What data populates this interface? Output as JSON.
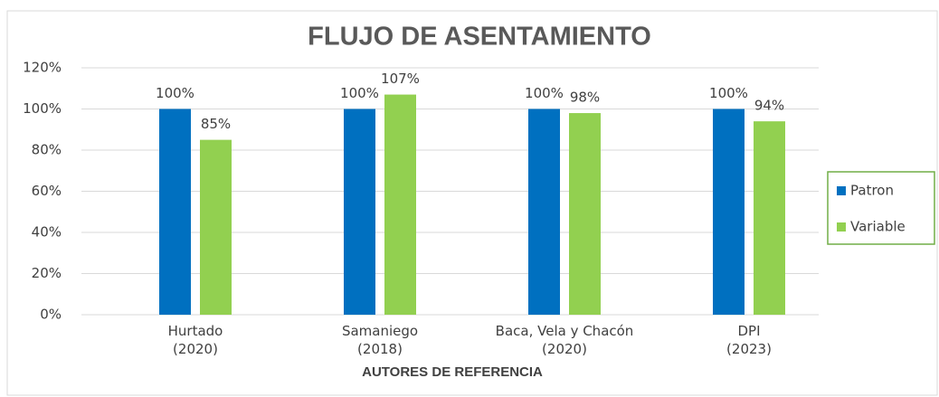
{
  "chart_data": {
    "type": "bar",
    "title": "FLUJO DE ASENTAMIENTO",
    "x_label": "AUTORES DE REFERENCIA",
    "categories": [
      "Hurtado\n(2020)",
      "Samaniego\n(2018)",
      "Baca, Vela y Chacón\n(2020)",
      "DPI\n(2023)"
    ],
    "series": [
      {
        "name": "Patron",
        "color": "#0070c0",
        "values": [
          100,
          100,
          100,
          100
        ],
        "value_labels": [
          "100%",
          "100%",
          "100%",
          "100%"
        ]
      },
      {
        "name": "Variable",
        "color": "#92d050",
        "values": [
          85,
          107,
          98,
          94
        ],
        "value_labels": [
          "85%",
          "107%",
          "98%",
          "94%"
        ]
      }
    ],
    "ylim": [
      0,
      120
    ],
    "yticks": [
      {
        "value": 0,
        "label": "0%"
      },
      {
        "value": 20,
        "label": "20%"
      },
      {
        "value": 40,
        "label": "40%"
      },
      {
        "value": 60,
        "label": "60%"
      },
      {
        "value": 80,
        "label": "80%"
      },
      {
        "value": 100,
        "label": "100%"
      },
      {
        "value": 120,
        "label": "120%"
      }
    ],
    "grid": true,
    "legend": "right"
  }
}
